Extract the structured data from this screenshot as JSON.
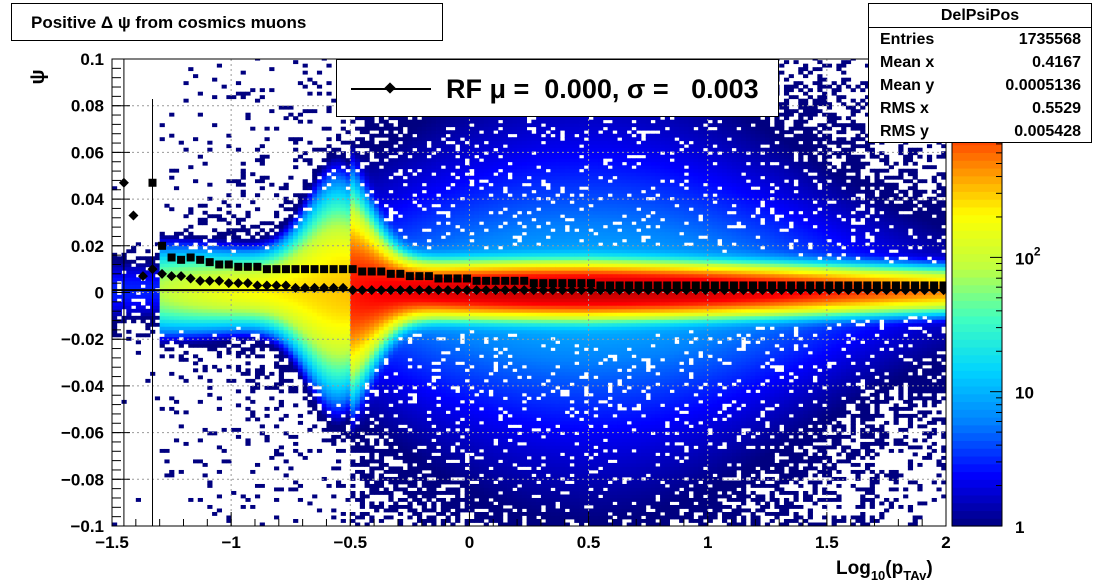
{
  "title": "Positive Δ ψ from cosmics muons",
  "stats": {
    "name": "DelPsiPos",
    "rows": [
      {
        "label": "Entries",
        "value": "1735568"
      },
      {
        "label": "Mean x",
        "value": "0.4167"
      },
      {
        "label": "Mean y",
        "value": "0.0005136"
      },
      {
        "label": "RMS x",
        "value": "0.5529"
      },
      {
        "label": "RMS y",
        "value": "0.005428"
      }
    ]
  },
  "legend": {
    "text": "RF μ =  0.000, σ =   0.003"
  },
  "chart_data": {
    "type": "heatmap",
    "xlabel": "Log",
    "xlabel_sub": "10",
    "xlabel_paren": "(p",
    "xlabel_sub2": "TAv",
    "xlabel_close": ")",
    "ylabel": "ψ",
    "xlim": [
      -1.5,
      2
    ],
    "ylim": [
      -0.1,
      0.1
    ],
    "x_ticks": [
      "−1.5",
      "−1",
      "−0.5",
      "0",
      "0.5",
      "1",
      "1.5",
      "2"
    ],
    "x_tick_values": [
      -1.5,
      -1,
      -0.5,
      0,
      0.5,
      1,
      1.5,
      2
    ],
    "y_ticks": [
      "−0.1",
      "−0.08",
      "−0.06",
      "−0.04",
      "−0.02",
      "0",
      "0.02",
      "0.04",
      "0.06",
      "0.08",
      "0.1"
    ],
    "y_tick_values": [
      -0.1,
      -0.08,
      -0.06,
      -0.04,
      -0.02,
      0,
      0.02,
      0.04,
      0.06,
      0.08,
      0.1
    ],
    "grid": true,
    "color_scale": "log",
    "zlim": [
      1,
      3000
    ],
    "z_ticks": [
      {
        "label": "1",
        "value": 1
      },
      {
        "label": "10",
        "value": 10
      },
      {
        "label": "10",
        "sup": "2",
        "value": 100
      }
    ],
    "colors": [
      "#000080",
      "#0000ff",
      "#0080ff",
      "#00d4ff",
      "#40ffc0",
      "#c0ff40",
      "#ffff00",
      "#ff8000",
      "#ff0000",
      "#c00000"
    ],
    "mean_series_x": [
      -1.45,
      -1.41,
      -1.37,
      -1.33,
      -1.29,
      -1.25,
      -1.21,
      -1.17,
      -1.13,
      -1.09,
      -1.05,
      -1.01,
      -0.97,
      -0.93,
      -0.89,
      -0.85,
      -0.81,
      -0.77,
      -0.73,
      -0.69,
      -0.65,
      -0.61,
      -0.57,
      -0.53,
      -0.49,
      -0.45,
      -0.41,
      -0.37,
      -0.33,
      -0.29,
      -0.25,
      -0.21,
      -0.17,
      -0.13,
      -0.09,
      -0.05,
      -0.01,
      0.03,
      0.07,
      0.11,
      0.15,
      0.19,
      0.23,
      0.27,
      0.31,
      0.35,
      0.39,
      0.43,
      0.47,
      0.51,
      0.55,
      0.59,
      0.63,
      0.67,
      0.71,
      0.75,
      0.79,
      0.83,
      0.87,
      0.91,
      0.95,
      0.99,
      1.03,
      1.07,
      1.11,
      1.15,
      1.19,
      1.23,
      1.27,
      1.31,
      1.35,
      1.39,
      1.43,
      1.47,
      1.51,
      1.55,
      1.59,
      1.63,
      1.67,
      1.71,
      1.75,
      1.79,
      1.83,
      1.87,
      1.91,
      1.95,
      1.99
    ],
    "mean_series_y": [
      0.047,
      0.033,
      0.007,
      0.01,
      0.008,
      0.007,
      0.007,
      0.006,
      0.005,
      0.005,
      0.005,
      0.004,
      0.004,
      0.004,
      0.003,
      0.003,
      0.003,
      0.003,
      0.002,
      0.002,
      0.002,
      0.002,
      0.002,
      0.002,
      0.001,
      0.001,
      0.001,
      0.001,
      0.001,
      0.001,
      0.001,
      0.001,
      0.001,
      0.001,
      0.001,
      0.001,
      0.001,
      0.001,
      0.001,
      0.001,
      0.001,
      0.001,
      0.001,
      0.001,
      0.001,
      0.001,
      0.001,
      0.001,
      0.001,
      0.001,
      0.001,
      0.001,
      0.001,
      0.001,
      0.001,
      0.001,
      0.001,
      0.001,
      0.001,
      0.001,
      0.001,
      0.001,
      0.001,
      0.001,
      0.001,
      0.001,
      0.001,
      0.001,
      0.001,
      0.001,
      0.001,
      0.001,
      0.001,
      0.001,
      0.001,
      0.001,
      0.001,
      0.001,
      0.001,
      0.001,
      0.001,
      0.001,
      0.001,
      0.001,
      0.001,
      0.001,
      0.001
    ],
    "rms_series_x": [
      -1.33,
      -1.29,
      -1.25,
      -1.21,
      -1.17,
      -1.13,
      -1.09,
      -1.05,
      -1.01,
      -0.97,
      -0.93,
      -0.89,
      -0.85,
      -0.81,
      -0.77,
      -0.73,
      -0.69,
      -0.65,
      -0.61,
      -0.57,
      -0.53,
      -0.49,
      -0.45,
      -0.41,
      -0.37,
      -0.33,
      -0.29,
      -0.25,
      -0.21,
      -0.17,
      -0.13,
      -0.09,
      -0.05,
      -0.01,
      0.03,
      0.07,
      0.11,
      0.15,
      0.19,
      0.23,
      0.27,
      0.31,
      0.35,
      0.39,
      0.43,
      0.47,
      0.51,
      0.55,
      0.59,
      0.63,
      0.67,
      0.71,
      0.75,
      0.79,
      0.83,
      0.87,
      0.91,
      0.95,
      0.99,
      1.03,
      1.07,
      1.11,
      1.15,
      1.19,
      1.23,
      1.27,
      1.31,
      1.35,
      1.39,
      1.43,
      1.47,
      1.51,
      1.55,
      1.59,
      1.63,
      1.67,
      1.71,
      1.75,
      1.79,
      1.83,
      1.87,
      1.91,
      1.95,
      1.99
    ],
    "rms_series_y": [
      0.047,
      0.02,
      0.015,
      0.014,
      0.015,
      0.014,
      0.013,
      0.012,
      0.012,
      0.011,
      0.011,
      0.011,
      0.01,
      0.01,
      0.01,
      0.01,
      0.01,
      0.01,
      0.01,
      0.01,
      0.01,
      0.01,
      0.009,
      0.009,
      0.009,
      0.008,
      0.008,
      0.007,
      0.007,
      0.007,
      0.006,
      0.006,
      0.006,
      0.006,
      0.005,
      0.005,
      0.005,
      0.005,
      0.005,
      0.005,
      0.004,
      0.004,
      0.004,
      0.004,
      0.004,
      0.004,
      0.004,
      0.003,
      0.003,
      0.003,
      0.003,
      0.003,
      0.003,
      0.003,
      0.003,
      0.003,
      0.003,
      0.003,
      0.003,
      0.003,
      0.003,
      0.003,
      0.003,
      0.003,
      0.003,
      0.003,
      0.003,
      0.003,
      0.003,
      0.003,
      0.003,
      0.003,
      0.003,
      0.003,
      0.003,
      0.003,
      0.003,
      0.003,
      0.003,
      0.003,
      0.003,
      0.003,
      0.003,
      0.003,
      0.003,
      0.003
    ],
    "fit_line_y": 0.001
  }
}
